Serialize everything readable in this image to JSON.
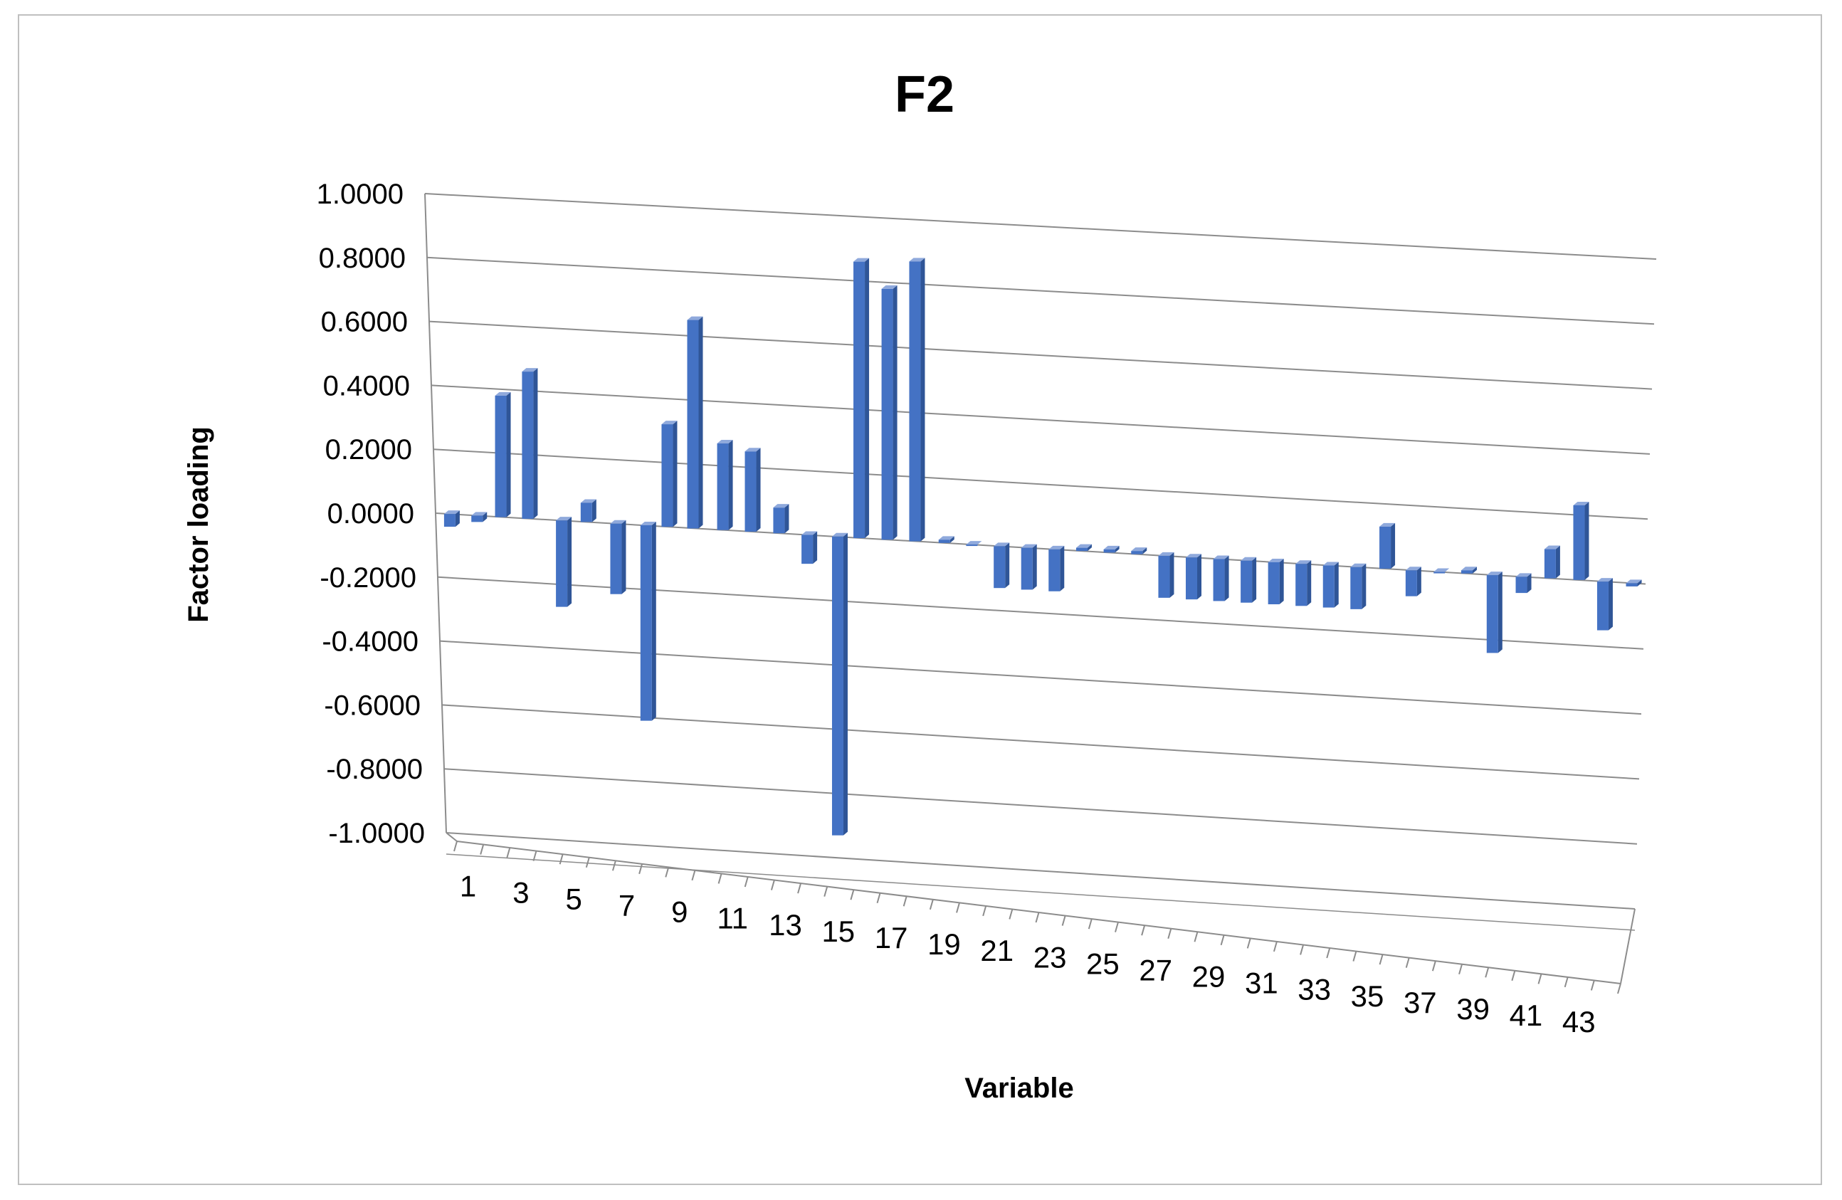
{
  "chart_data": {
    "type": "bar",
    "title": "F2",
    "xlabel": "Variable",
    "ylabel": "Factor loading",
    "ylim": [
      -1.0,
      1.0
    ],
    "yticks": [
      "1.0000",
      "0.8000",
      "0.6000",
      "0.4000",
      "0.2000",
      "0.0000",
      "-0.2000",
      "-0.4000",
      "-0.6000",
      "-0.8000",
      "-1.0000"
    ],
    "ytick_values": [
      1.0,
      0.8,
      0.6,
      0.4,
      0.2,
      0.0,
      -0.2,
      -0.4,
      -0.6,
      -0.8,
      -1.0
    ],
    "categories": [
      1,
      2,
      3,
      4,
      5,
      6,
      7,
      8,
      9,
      10,
      11,
      12,
      13,
      14,
      15,
      16,
      17,
      18,
      19,
      20,
      21,
      22,
      23,
      24,
      25,
      26,
      27,
      28,
      29,
      30,
      31,
      32,
      33,
      34,
      35,
      36,
      37,
      38,
      39,
      40,
      41,
      42,
      43,
      44
    ],
    "xtick_labels": [
      "1",
      "3",
      "5",
      "7",
      "9",
      "11",
      "13",
      "15",
      "17",
      "19",
      "21",
      "23",
      "25",
      "27",
      "29",
      "31",
      "33",
      "35",
      "37",
      "39",
      "41",
      "43"
    ],
    "values": [
      -0.04,
      -0.02,
      0.38,
      0.46,
      -0.27,
      0.06,
      -0.22,
      -0.61,
      0.32,
      0.65,
      0.27,
      0.25,
      0.08,
      -0.09,
      -0.93,
      0.86,
      0.78,
      0.87,
      0.01,
      0.0,
      -0.13,
      -0.13,
      -0.13,
      0.01,
      0.01,
      0.01,
      -0.13,
      -0.13,
      -0.13,
      -0.13,
      -0.13,
      -0.13,
      -0.13,
      -0.13,
      0.13,
      -0.08,
      0.0,
      0.01,
      -0.24,
      -0.05,
      0.09,
      0.23,
      -0.15,
      -0.01
    ],
    "grid": true,
    "legend": "none",
    "colors": {
      "bar": "#4472c4",
      "bar_side": "#2f5597",
      "bar_top": "#8fa9dc",
      "grid": "#8c8c8c"
    }
  }
}
